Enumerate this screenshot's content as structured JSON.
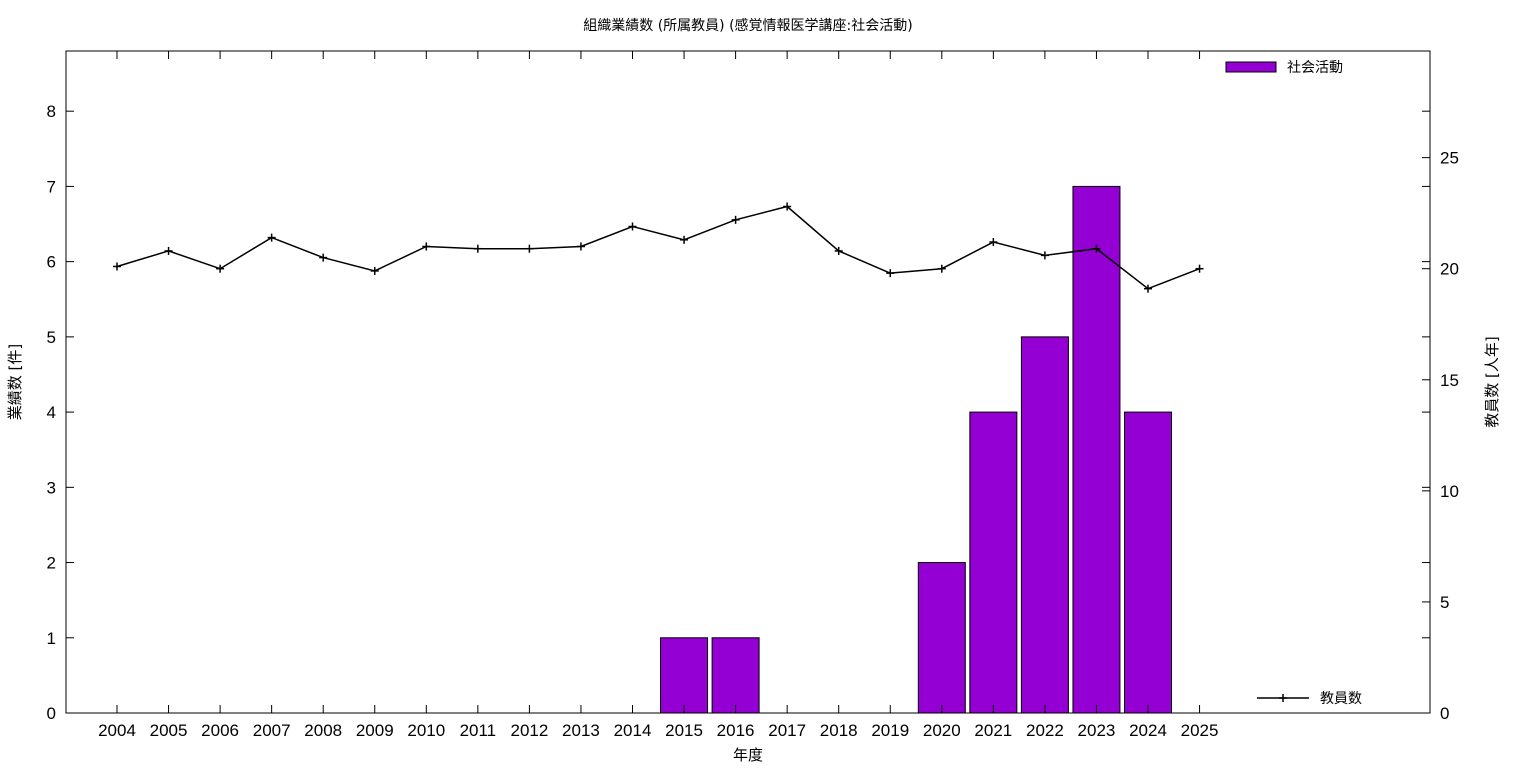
{
  "chart_data": {
    "type": "bar",
    "title": "組織業績数 (所属教員) (感覚情報医学講座:社会活動)",
    "xlabel": "年度",
    "ylabel": "業績数 [件]",
    "y2label": "教員数 [人年]",
    "categories": [
      "2004",
      "2005",
      "2006",
      "2007",
      "2008",
      "2009",
      "2010",
      "2011",
      "2012",
      "2013",
      "2014",
      "2015",
      "2016",
      "2017",
      "2018",
      "2019",
      "2020",
      "2021",
      "2022",
      "2023",
      "2024",
      "2025"
    ],
    "ylim": [
      0,
      8.8
    ],
    "y2lim": [
      0,
      29.8
    ],
    "yticks": [
      0,
      1,
      2,
      3,
      4,
      5,
      6,
      7,
      8
    ],
    "y2ticks": [
      0,
      5,
      10,
      15,
      20,
      25
    ],
    "grid": false,
    "series": [
      {
        "name": "社会活動",
        "type": "bar",
        "axis": "left",
        "color": "#9400d3",
        "values": [
          0,
          0,
          0,
          0,
          0,
          0,
          0,
          0,
          0,
          0,
          0,
          1,
          1,
          0,
          0,
          0,
          2,
          4,
          5,
          7,
          4,
          null
        ]
      },
      {
        "name": "教員数",
        "type": "line",
        "axis": "right",
        "color": "#000000",
        "values": [
          20.1,
          20.8,
          20.0,
          21.4,
          20.5,
          19.9,
          21.0,
          20.9,
          20.9,
          21.0,
          21.9,
          21.3,
          22.2,
          22.8,
          20.8,
          19.8,
          20.0,
          21.2,
          20.6,
          20.9,
          19.1,
          20.0
        ]
      }
    ],
    "legend": [
      {
        "label": "社会活動",
        "position": "top-right"
      },
      {
        "label": "教員数",
        "position": "bottom-right"
      }
    ]
  }
}
